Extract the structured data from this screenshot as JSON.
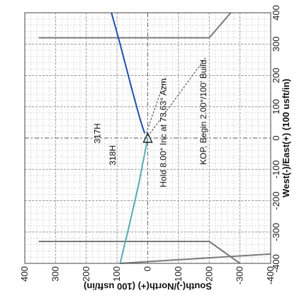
{
  "chart_data": {
    "type": "line",
    "title": "",
    "xlabel": "West(-)/East(+) (100 usft/in)",
    "ylabel": "South(-)/North(+) (100 usft/in)",
    "xlim": [
      -400,
      400
    ],
    "ylim": [
      -400,
      400
    ],
    "x_ticks": [
      -400,
      -300,
      -200,
      -100,
      0,
      100,
      200,
      300,
      400
    ],
    "y_ticks": [
      -400,
      -300,
      -200,
      -100,
      0,
      100,
      200,
      300,
      400
    ],
    "x_tick_labels": [
      "-400",
      "-300",
      "-200",
      "-100",
      "0",
      "100",
      "200",
      "300",
      "400"
    ],
    "y_tick_labels": [
      "-400",
      "-300",
      "-200",
      "-100",
      "0",
      "100",
      "200",
      "300",
      "400"
    ],
    "grid": true,
    "colors": {
      "plan_318H": "#5aaab4",
      "plan_317H": "#1f4fae",
      "boundary": "#7a7a7a",
      "grid_major": "#9a9a9a",
      "grid_minor": "#c4c4c4"
    },
    "series": [
      {
        "name": "318H",
        "label_at": [
          -55,
          105
        ],
        "points": [
          [
            0,
            0
          ],
          [
            -40,
            8
          ],
          [
            -150,
            30
          ],
          [
            -270,
            58
          ],
          [
            -400,
            90
          ]
        ]
      },
      {
        "name": "317H",
        "label_at": [
          15,
          155
        ],
        "points": [
          [
            15,
            10
          ],
          [
            60,
            25
          ],
          [
            150,
            50
          ],
          [
            300,
            90
          ],
          [
            400,
            118
          ]
        ]
      }
    ],
    "boundaries": [
      {
        "points": [
          [
            -400,
            90
          ],
          [
            -370,
            -400
          ]
        ]
      },
      {
        "points": [
          [
            -330,
            355
          ],
          [
            -330,
            -200
          ],
          [
            -400,
            -300
          ]
        ]
      },
      {
        "points": [
          [
            320,
            355
          ],
          [
            320,
            -200
          ],
          [
            400,
            -270
          ]
        ]
      },
      {
        "points": [
          [
            400,
            -270
          ],
          [
            400,
            -270
          ]
        ]
      }
    ],
    "annotations": [
      {
        "text": "Hold 8.00° Inc at 73.63° Azm",
        "anchor": [
          15,
          5
        ],
        "label_at": [
          190,
          -60
        ]
      },
      {
        "text": "KOP, Begin 2.00°/100' Build",
        "anchor": [
          5,
          0
        ],
        "label_at": [
          250,
          -190
        ]
      }
    ]
  }
}
